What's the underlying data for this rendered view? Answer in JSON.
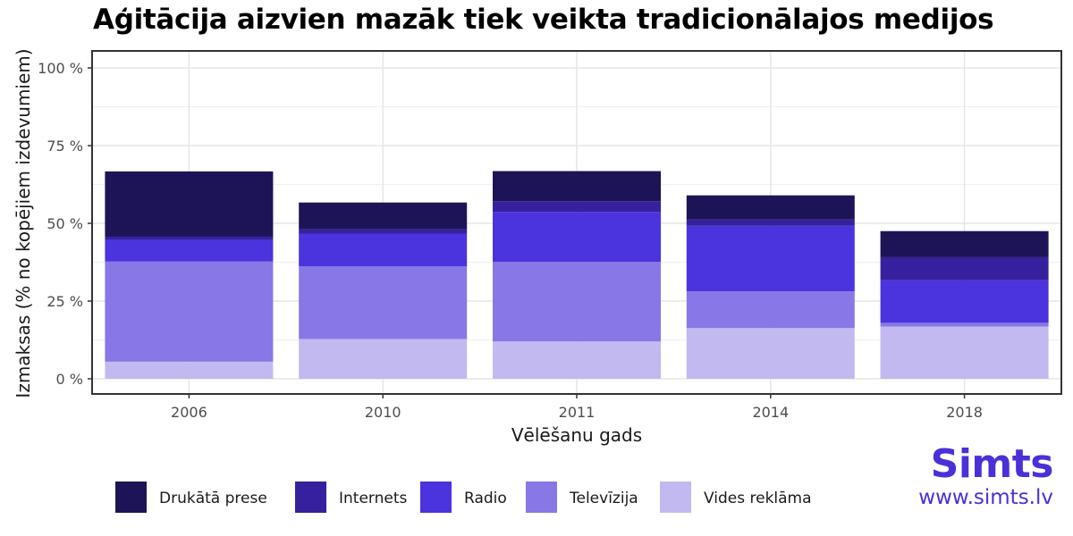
{
  "chart_data": {
    "type": "bar",
    "stacked": true,
    "title": "Aģitācija aizvien mazāk tiek veikta tradicionālajos medijos",
    "xlabel": "Vēlēšanu gads",
    "ylabel": "Izmaksas (% no kopējiem izdevumiem)",
    "categories": [
      "2006",
      "2010",
      "2011",
      "2014",
      "2018"
    ],
    "ylim": [
      0,
      100
    ],
    "yticks": [
      0,
      25,
      50,
      75,
      100
    ],
    "ytick_labels": [
      "0 %",
      "25 %",
      "50 %",
      "75 %",
      "100 %"
    ],
    "grid": true,
    "legend_position": "bottom",
    "series": [
      {
        "name": "Vides reklāma",
        "color": "#c2b9f0",
        "values": [
          5.5,
          12.8,
          12.0,
          16.3,
          16.8
        ]
      },
      {
        "name": "Televīzija",
        "color": "#8877e6",
        "values": [
          32.2,
          23.4,
          25.6,
          11.8,
          1.2
        ]
      },
      {
        "name": "Radio",
        "color": "#4b33dd",
        "values": [
          7.0,
          10.5,
          16.1,
          21.1,
          13.7
        ]
      },
      {
        "name": "Internets",
        "color": "#36209e",
        "values": [
          1.0,
          1.4,
          3.4,
          2.0,
          7.4
        ]
      },
      {
        "name": "Drukātā prese",
        "color": "#1d1457",
        "values": [
          21.0,
          8.6,
          9.7,
          7.8,
          8.4
        ]
      }
    ],
    "legend_order": [
      "Drukātā prese",
      "Internets",
      "Radio",
      "Televīzija",
      "Vides reklāma"
    ]
  },
  "brand": {
    "name": "Simts",
    "url": "www.simts.lv",
    "color": "#4b2fd8"
  }
}
